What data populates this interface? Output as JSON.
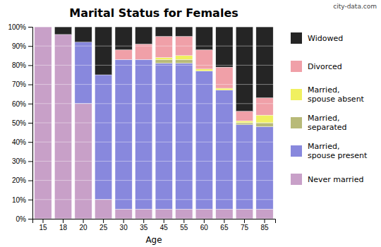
{
  "chart_data": {
    "type": "bar",
    "stacked": true,
    "title": "Marital Status for Females",
    "x_label": "Age",
    "annotations": [
      "city-data.com"
    ],
    "categories": [
      "15",
      "18",
      "20",
      "25",
      "30",
      "35",
      "45",
      "55",
      "60",
      "65",
      "75",
      "85"
    ],
    "series": [
      {
        "name": "Never married",
        "color": "#c8a0c8",
        "values": [
          100,
          96,
          60,
          10,
          5,
          5,
          5,
          5,
          5,
          5,
          5,
          5
        ]
      },
      {
        "name": "Married,\nspouse present",
        "color": "#8888dd",
        "values": [
          0,
          0,
          32,
          65,
          78,
          78,
          76,
          76,
          72,
          62,
          44,
          43
        ]
      },
      {
        "name": "Married,\nseparated",
        "color": "#b8ba78",
        "values": [
          0,
          0,
          0,
          0,
          0,
          0,
          2,
          2,
          0,
          0,
          1,
          2
        ]
      },
      {
        "name": "Married,\nspouse absent",
        "color": "#f0f060",
        "values": [
          0,
          0,
          0,
          0,
          0,
          0,
          1,
          2,
          1,
          1,
          1,
          4
        ]
      },
      {
        "name": "Divorced",
        "color": "#f0a0a8",
        "values": [
          0,
          0,
          0,
          0,
          5,
          8,
          11,
          10,
          10,
          11,
          5,
          9
        ]
      },
      {
        "name": "Widowed",
        "color": "#252525",
        "values": [
          0,
          4,
          8,
          25,
          12,
          9,
          5,
          5,
          12,
          21,
          44,
          37
        ]
      }
    ],
    "ylim": [
      0,
      100
    ],
    "yticks": [
      {
        "value": 0,
        "label": "0%"
      },
      {
        "value": 10,
        "label": "10%"
      },
      {
        "value": 20,
        "label": "20%"
      },
      {
        "value": 30,
        "label": "30%"
      },
      {
        "value": 40,
        "label": "40%"
      },
      {
        "value": 50,
        "label": "50%"
      },
      {
        "value": 60,
        "label": "60%"
      },
      {
        "value": 70,
        "label": "70%"
      },
      {
        "value": 80,
        "label": "80%"
      },
      {
        "value": 90,
        "label": "90%"
      },
      {
        "value": 100,
        "label": "100%"
      }
    ],
    "grid": true,
    "legend": "right"
  }
}
